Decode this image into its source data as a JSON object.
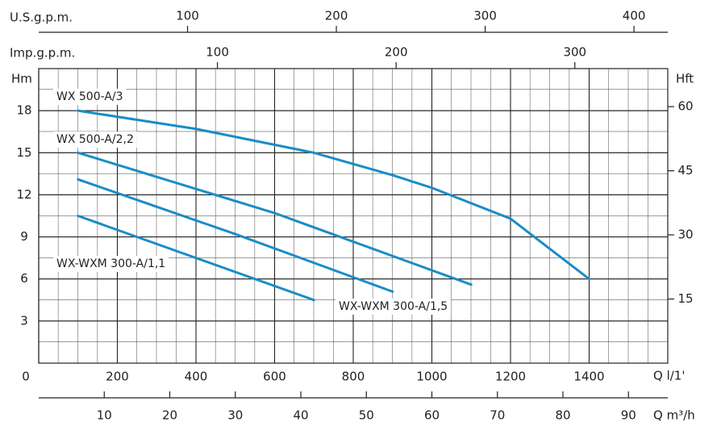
{
  "chart_data": {
    "type": "line",
    "xlabel": "Q l/1'",
    "ylabel": "Hm",
    "y2label": "Hft",
    "xlim": [
      0,
      1600
    ],
    "xticks": [
      0,
      200,
      400,
      600,
      800,
      1000,
      1200,
      1400
    ],
    "ylim": [
      0,
      21
    ],
    "yticks": [
      3,
      6,
      9,
      12,
      15,
      18
    ],
    "y2lim": [
      0,
      68.9
    ],
    "y2ticks": [
      15,
      30,
      45,
      60
    ],
    "grid": true,
    "top_axes": [
      {
        "label": "U.S.g.p.m.",
        "xlim": [
          0,
          422.7
        ],
        "xticks": [
          100,
          200,
          300,
          400
        ]
      },
      {
        "label": "Imp.g.p.m.",
        "xlim": [
          0,
          352
        ],
        "xticks": [
          100,
          200,
          300
        ]
      }
    ],
    "bottom_axis2": {
      "label": "Q m³/h",
      "xlim": [
        0,
        96
      ],
      "xticks": [
        10,
        20,
        30,
        40,
        50,
        60,
        70,
        80,
        90
      ]
    },
    "series": [
      {
        "name": "WX 500-A/3",
        "color": "#1a8cc7",
        "x": [
          100,
          400,
          700,
          900,
          1000,
          1200,
          1400
        ],
        "values": [
          18,
          16.7,
          15.0,
          13.4,
          12.5,
          10.3,
          6.0
        ]
      },
      {
        "name": "WX 500-A/2,2",
        "color": "#1a8cc7",
        "x": [
          100,
          600,
          1100
        ],
        "values": [
          15,
          10.7,
          5.6
        ]
      },
      {
        "name": "WX-WXM 300-A/1,5",
        "color": "#1a8cc7",
        "x": [
          100,
          500,
          900
        ],
        "values": [
          13.1,
          9.2,
          5.1
        ]
      },
      {
        "name": "WX-WXM 300-A/1,1",
        "color": "#1a8cc7",
        "x": [
          100,
          700
        ],
        "values": [
          10.5,
          4.5
        ]
      }
    ]
  }
}
